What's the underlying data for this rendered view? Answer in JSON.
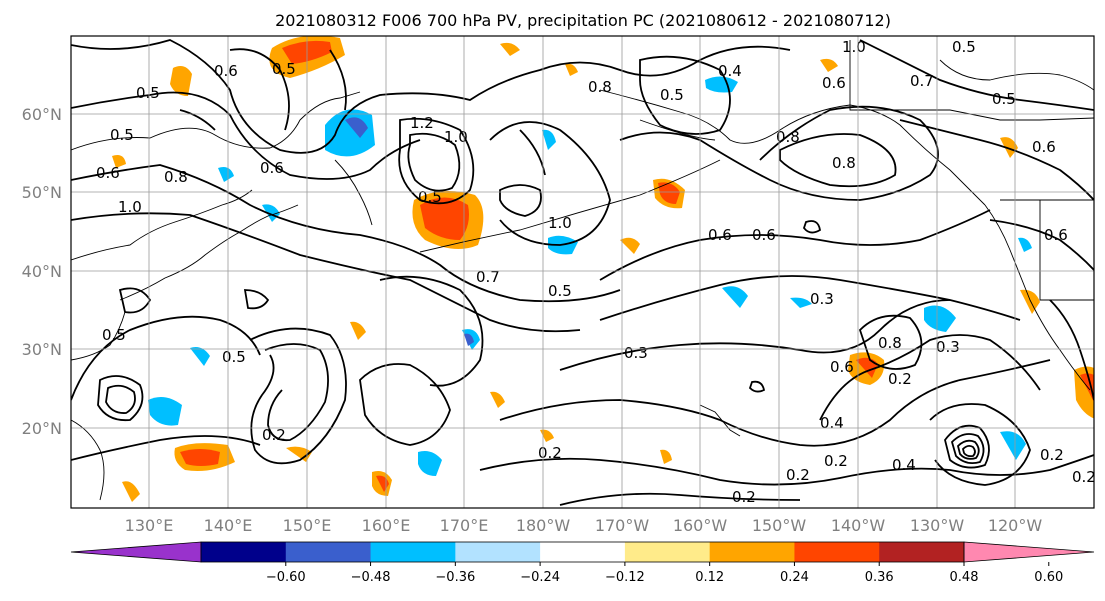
{
  "title": "2021080312 F006 700 hPa PV, precipitation PC (2021080612 - 2021080712)",
  "lat_labels": [
    "60°N",
    "50°N",
    "40°N",
    "30°N",
    "20°N"
  ],
  "lon_labels": [
    "130°E",
    "140°E",
    "150°E",
    "160°E",
    "170°E",
    "180°W",
    "170°W",
    "160°W",
    "150°W",
    "140°W",
    "130°W",
    "120°W"
  ],
  "colorbar": {
    "ticks": [
      "−0.60",
      "−0.48",
      "−0.36",
      "−0.24",
      "−0.12",
      "0.12",
      "0.24",
      "0.36",
      "0.48",
      "0.60"
    ],
    "colors": [
      "#9932cc",
      "#00008b",
      "#3a5fcd",
      "#00bfff",
      "#b2e2ff",
      "#ffffff",
      "#ffeb8a",
      "#ffa500",
      "#ff4500",
      "#b22222",
      "#ff88b0"
    ]
  },
  "contour_labels": [
    "0.5",
    "0.6",
    "0.5",
    "0.5",
    "0.6",
    "0.8",
    "1.0",
    "1.2",
    "1.0",
    "0.5",
    "0.8",
    "0.5",
    "0.5",
    "0.7",
    "0.6",
    "0.4",
    "0.6",
    "0.8",
    "1.0",
    "0.8",
    "0.6",
    "0.3",
    "0.7",
    "0.5",
    "0.5",
    "0.2",
    "0.3",
    "0.2",
    "0.4",
    "0.2",
    "0.2",
    "0.8",
    "0.3",
    "0.2",
    "0.6",
    "0.2",
    "0.4",
    "0.6",
    "0.2",
    "1.0",
    "0.5",
    "0.5",
    "0.6",
    "0.6",
    "0.2"
  ]
}
